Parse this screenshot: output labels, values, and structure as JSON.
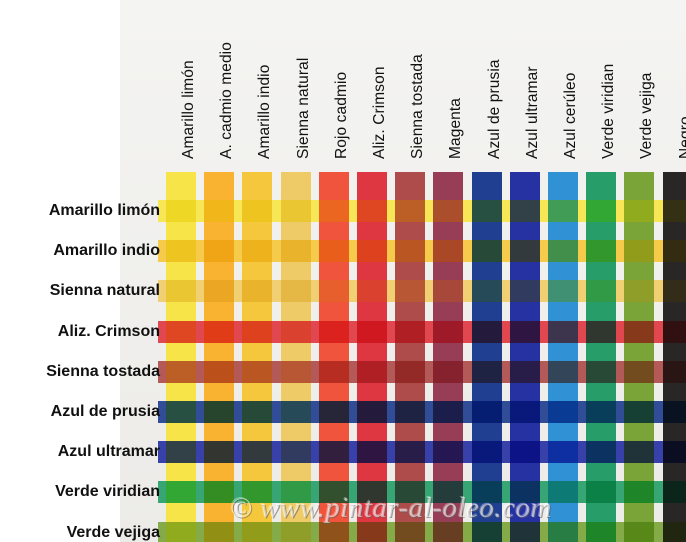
{
  "columns": [
    {
      "label": "Amarillo limón",
      "color": "#f6e238"
    },
    {
      "label": "A. cadmio medio",
      "color": "#f8ac1e"
    },
    {
      "label": "Amarillo indio",
      "color": "#f4c22c"
    },
    {
      "label": "Sienna natural",
      "color": "#eec65a"
    },
    {
      "label": "Rojo cadmio",
      "color": "#f0452c"
    },
    {
      "label": "Aliz. Crimson",
      "color": "#dc2630"
    },
    {
      "label": "Sienna tostada",
      "color": "#a63c3a"
    },
    {
      "label": "Magenta",
      "color": "#8e2c46"
    },
    {
      "label": "Azul de prusia",
      "color": "#0d2e86"
    },
    {
      "label": "Azul ultramar",
      "color": "#14209a"
    },
    {
      "label": "Azul cerúleo",
      "color": "#1e88d0"
    },
    {
      "label": "Verde viridian",
      "color": "#14965c"
    },
    {
      "label": "Verde vejiga",
      "color": "#6e9c26"
    },
    {
      "label": "Negro",
      "color": "#151412"
    }
  ],
  "rows": [
    {
      "label": "Amarillo limón",
      "color": "#f6e238"
    },
    {
      "label": "Amarillo indio",
      "color": "#f4c22c"
    },
    {
      "label": "Sienna natural",
      "color": "#eec65a"
    },
    {
      "label": "Aliz. Crimson",
      "color": "#dc2630"
    },
    {
      "label": "Sienna tostada",
      "color": "#a63c3a"
    },
    {
      "label": "Azul de prusia",
      "color": "#0d2e86"
    },
    {
      "label": "Azul ultramar",
      "color": "#14209a"
    },
    {
      "label": "Verde viridian",
      "color": "#14965c"
    },
    {
      "label": "Verde vejiga",
      "color": "#6e9c26"
    }
  ],
  "watermark": "© www.pintar-al-oleo.com"
}
